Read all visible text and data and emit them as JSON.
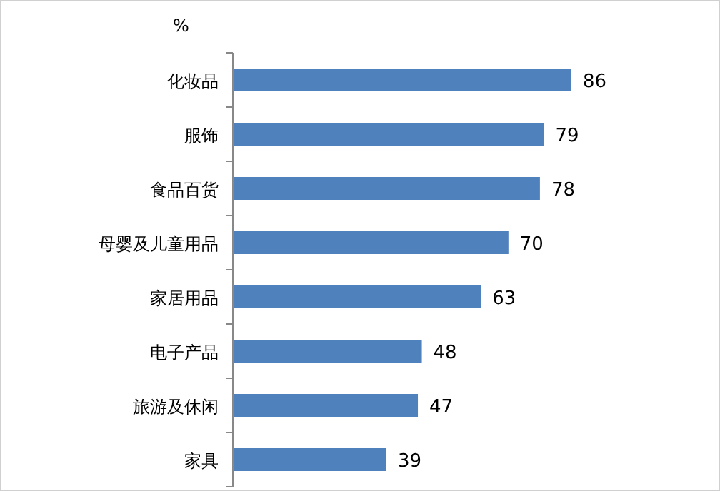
{
  "chart_data": {
    "type": "bar",
    "orientation": "horizontal",
    "categories": [
      "化妆品",
      "服饰",
      "食品百货",
      "母婴及儿童用品",
      "家居用品",
      "电子产品",
      "旅游及休闲",
      "家具"
    ],
    "values": [
      86,
      79,
      78,
      70,
      63,
      48,
      47,
      39
    ],
    "color": "#4f81bd",
    "data_labels": true,
    "annotations": [
      "%"
    ]
  }
}
